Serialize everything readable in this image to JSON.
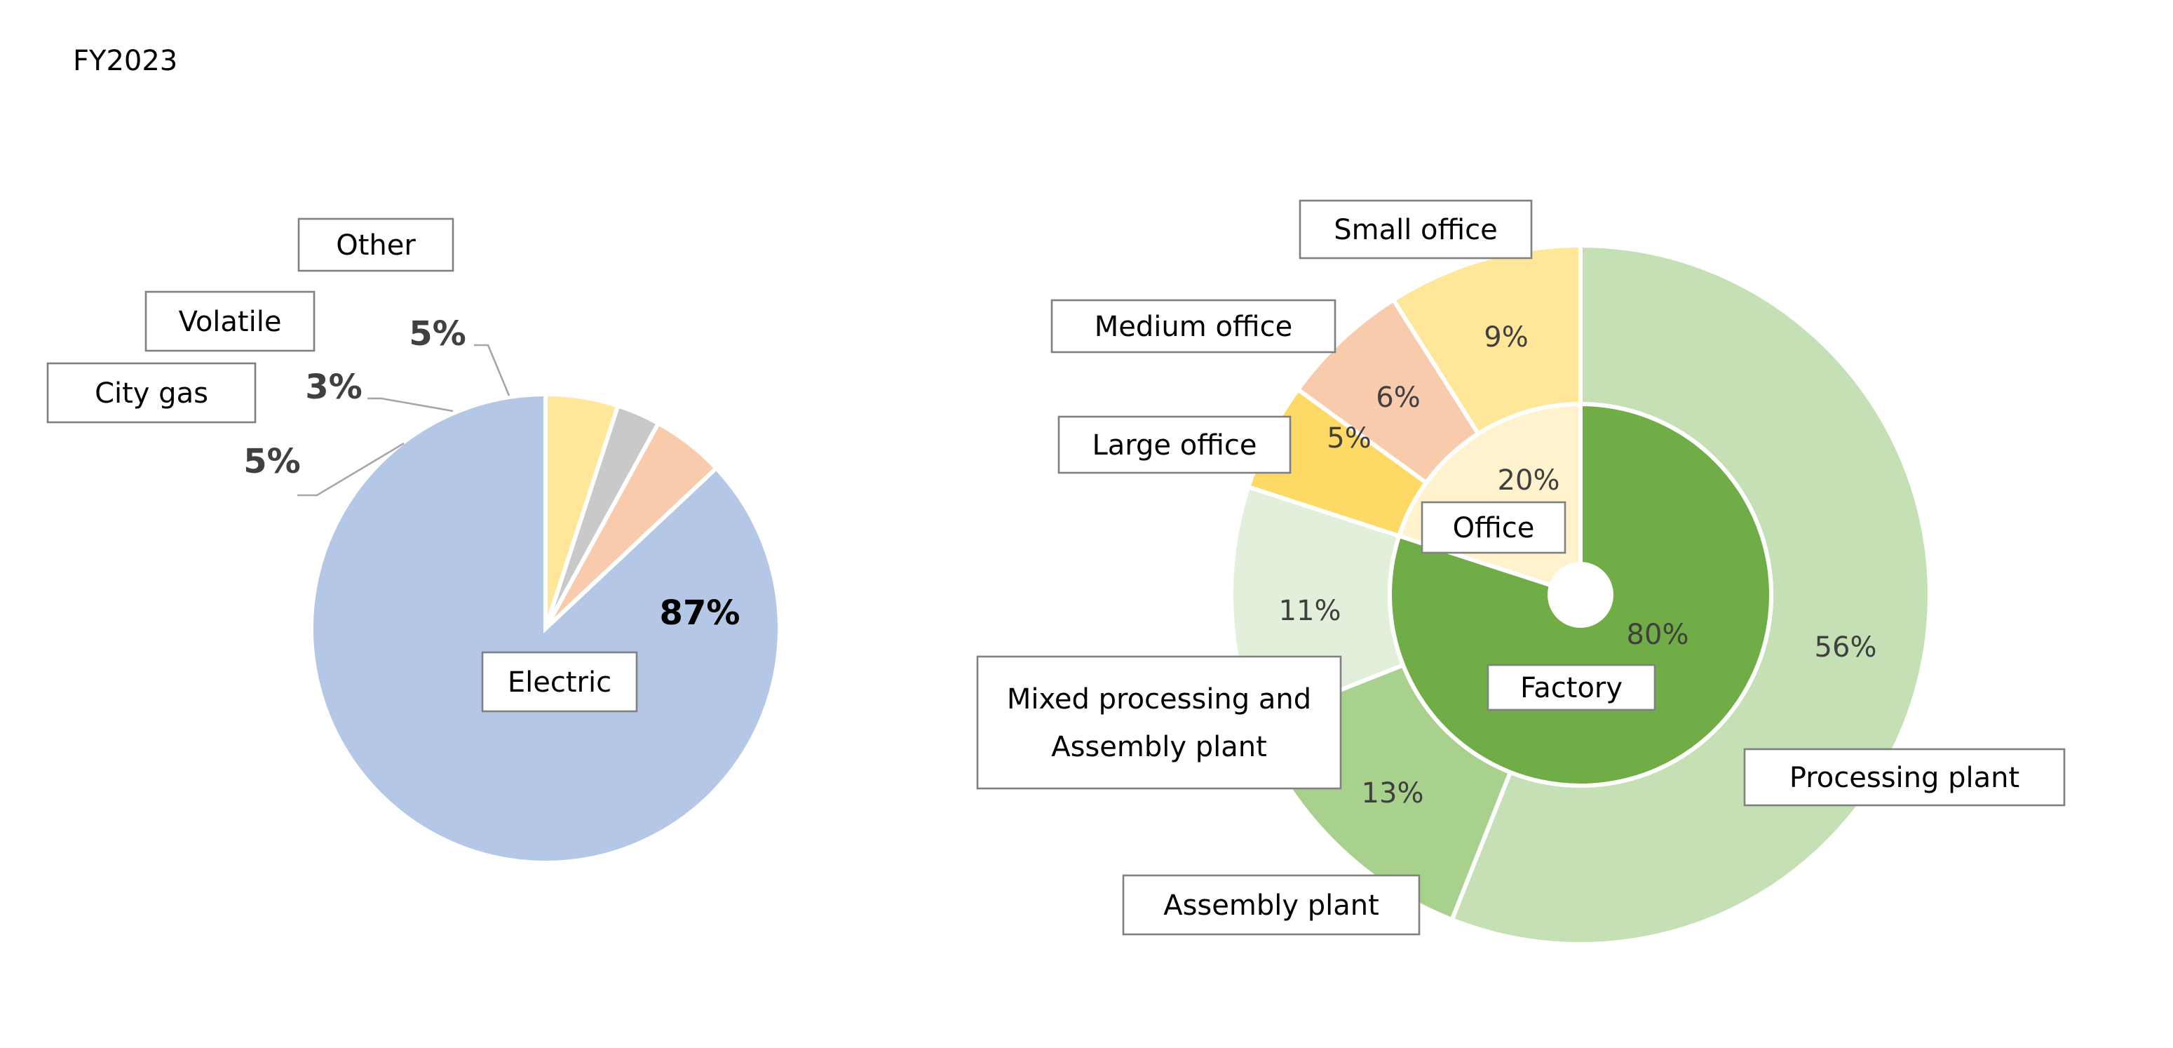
{
  "header": {
    "period": "FY2023"
  },
  "chart_data": [
    {
      "type": "pie",
      "slices": [
        {
          "label": "Electric",
          "value": 87,
          "value_label": "87%",
          "color": "#b4c7e7"
        },
        {
          "label": "City gas",
          "value": 5,
          "value_label": "5%",
          "color": "#f8cbad"
        },
        {
          "label": "Volatile",
          "value": 3,
          "value_label": "3%",
          "color": "#c9c9c9"
        },
        {
          "label": "Other",
          "value": 5,
          "value_label": "5%",
          "color": "#ffe699"
        }
      ]
    },
    {
      "type": "pie",
      "rings": [
        {
          "name": "inner",
          "slices": [
            {
              "label": "Factory",
              "value": 80,
              "value_label": "80%",
              "color": "#70ad47"
            },
            {
              "label": "Office",
              "value": 20,
              "value_label": "20%",
              "color": "#fff2cc"
            }
          ]
        },
        {
          "name": "outer",
          "slices": [
            {
              "label": "Processing plant",
              "value": 56,
              "value_label": "56%",
              "color": "#c5e0b4"
            },
            {
              "label": "Assembly plant",
              "value": 13,
              "value_label": "13%",
              "color": "#a9d18e"
            },
            {
              "label": "Mixed processing and Assembly plant",
              "label_lines": [
                "Mixed processing and",
                "Assembly plant"
              ],
              "value": 11,
              "value_label": "11%",
              "color": "#e2efda"
            },
            {
              "label": "Large office",
              "value": 5,
              "value_label": "5%",
              "color": "#ffd966"
            },
            {
              "label": "Medium office",
              "value": 6,
              "value_label": "6%",
              "color": "#f8cbad"
            },
            {
              "label": "Small office",
              "value": 9,
              "value_label": "9%",
              "color": "#ffe699"
            }
          ]
        }
      ]
    }
  ]
}
